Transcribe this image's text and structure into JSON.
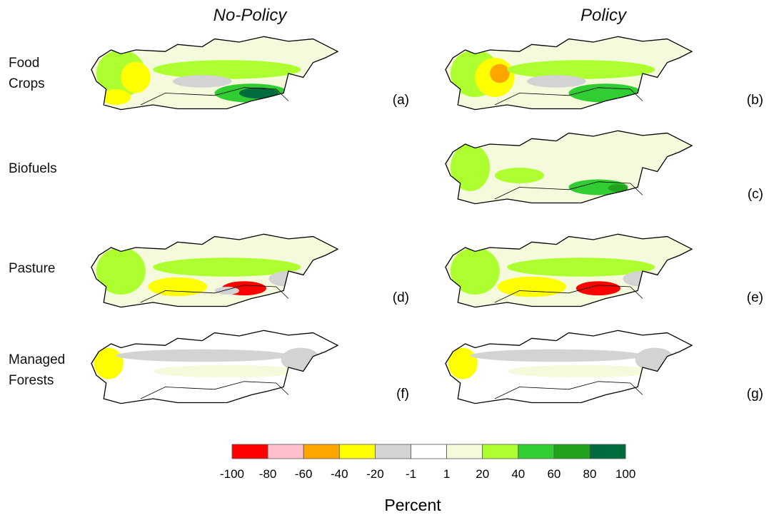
{
  "columns": [
    "No-Policy",
    "Policy"
  ],
  "rows": [
    "Food Crops",
    "Biofuels",
    "Pasture",
    "Managed Forests"
  ],
  "panels": [
    "(a)",
    "(b)",
    "(c)",
    "(d)",
    "(e)",
    "(f)",
    "(g)"
  ],
  "legend": {
    "colors": [
      "#ff0000",
      "#ffc0cb",
      "#ffa500",
      "#ffff00",
      "#d3d3d3",
      "#ffffff",
      "#f5fadc",
      "#adff2f",
      "#32cd32",
      "#22a31e",
      "#006b3c"
    ],
    "ticks": [
      -100,
      -80,
      -60,
      -40,
      -20,
      -1,
      1,
      20,
      40,
      60,
      80,
      100
    ],
    "title": "Percent"
  }
}
